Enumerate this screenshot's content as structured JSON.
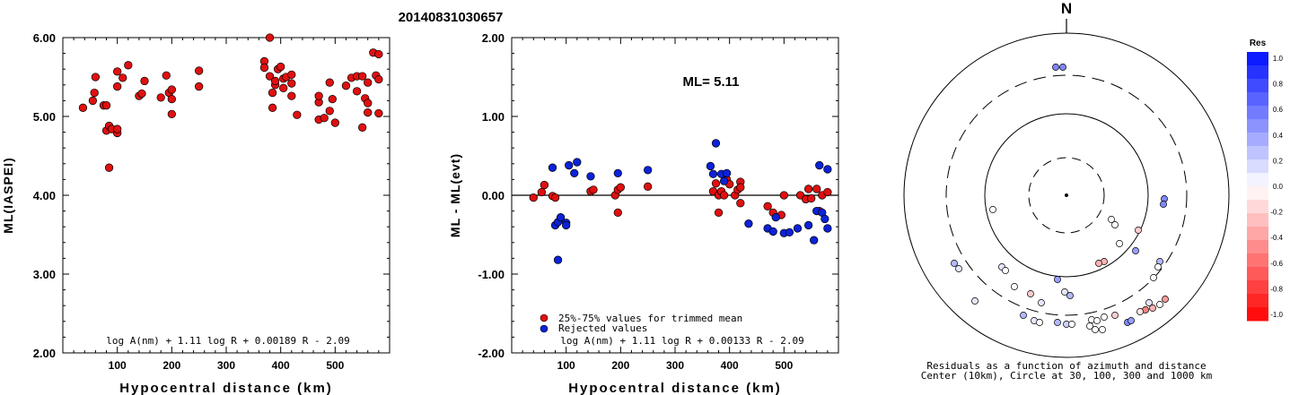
{
  "event_id": "20140831030657",
  "chart_data": [
    {
      "type": "scatter",
      "xlabel": "Hypocentral distance (km)",
      "ylabel": "ML(IASPEI)",
      "xlim": [
        0,
        600
      ],
      "ylim": [
        2.0,
        6.0
      ],
      "x_ticks": [
        "100",
        "200",
        "300",
        "400",
        "500"
      ],
      "y_ticks": [
        "2.00",
        "3.00",
        "4.00",
        "5.00",
        "6.00"
      ],
      "formula": "log A(nm) + 1.11 log R + 0.00189 R - 2.09",
      "point_color": "#e01010",
      "points": [
        [
          37,
          5.11
        ],
        [
          55,
          5.2
        ],
        [
          58,
          5.3
        ],
        [
          60,
          5.5
        ],
        [
          75,
          5.14
        ],
        [
          80,
          4.82
        ],
        [
          80,
          5.14
        ],
        [
          85,
          4.35
        ],
        [
          85,
          4.88
        ],
        [
          90,
          4.84
        ],
        [
          100,
          4.79
        ],
        [
          100,
          4.84
        ],
        [
          100,
          5.38
        ],
        [
          100,
          5.57
        ],
        [
          110,
          5.49
        ],
        [
          120,
          5.65
        ],
        [
          140,
          5.26
        ],
        [
          145,
          5.29
        ],
        [
          150,
          5.45
        ],
        [
          180,
          5.24
        ],
        [
          190,
          5.52
        ],
        [
          195,
          5.3
        ],
        [
          200,
          5.03
        ],
        [
          200,
          5.22
        ],
        [
          200,
          5.34
        ],
        [
          250,
          5.38
        ],
        [
          250,
          5.58
        ],
        [
          370,
          5.7
        ],
        [
          370,
          5.62
        ],
        [
          380,
          6.0
        ],
        [
          380,
          5.51
        ],
        [
          385,
          5.11
        ],
        [
          385,
          5.3
        ],
        [
          390,
          5.4
        ],
        [
          390,
          5.45
        ],
        [
          395,
          5.6
        ],
        [
          400,
          5.63
        ],
        [
          405,
          5.48
        ],
        [
          405,
          5.36
        ],
        [
          410,
          5.5
        ],
        [
          420,
          5.42
        ],
        [
          420,
          5.53
        ],
        [
          420,
          5.26
        ],
        [
          430,
          5.02
        ],
        [
          470,
          4.96
        ],
        [
          470,
          5.18
        ],
        [
          470,
          5.26
        ],
        [
          480,
          4.98
        ],
        [
          490,
          5.07
        ],
        [
          490,
          5.43
        ],
        [
          495,
          5.22
        ],
        [
          500,
          4.92
        ],
        [
          520,
          5.39
        ],
        [
          530,
          5.49
        ],
        [
          540,
          5.51
        ],
        [
          540,
          5.32
        ],
        [
          550,
          4.86
        ],
        [
          550,
          5.51
        ],
        [
          555,
          5.23
        ],
        [
          560,
          5.43
        ],
        [
          560,
          5.17
        ],
        [
          560,
          5.05
        ],
        [
          570,
          5.81
        ],
        [
          575,
          5.52
        ],
        [
          580,
          5.04
        ],
        [
          580,
          5.79
        ],
        [
          580,
          5.47
        ]
      ]
    },
    {
      "type": "scatter",
      "xlabel": "Hypocentral distance (km)",
      "ylabel": "ML - ML(evt)",
      "xlim": [
        0,
        600
      ],
      "ylim": [
        -2.0,
        2.0
      ],
      "x_ticks": [
        "100",
        "200",
        "300",
        "400",
        "500"
      ],
      "y_ticks": [
        "-2.00",
        "-1.00",
        "0.00",
        "1.00",
        "2.00"
      ],
      "annotation": "ML= 5.11",
      "formula": "log A(nm) + 1.11 log R + 0.00133 R - 2.09",
      "legend": [
        {
          "label": "25%-75% values for trimmed mean",
          "color": "#e01010"
        },
        {
          "label": "Rejected values",
          "color": "#0b22d8"
        }
      ],
      "series": [
        {
          "name": "25%-75% values for trimmed mean",
          "color": "#e01010",
          "points": [
            [
              40,
              -0.03
            ],
            [
              55,
              0.04
            ],
            [
              60,
              0.13
            ],
            [
              75,
              -0.01
            ],
            [
              80,
              -0.03
            ],
            [
              145,
              0.05
            ],
            [
              150,
              0.07
            ],
            [
              190,
              0.0
            ],
            [
              195,
              0.07
            ],
            [
              195,
              -0.22
            ],
            [
              200,
              0.1
            ],
            [
              250,
              0.11
            ],
            [
              370,
              0.05
            ],
            [
              375,
              0.15
            ],
            [
              380,
              0.0
            ],
            [
              380,
              -0.22
            ],
            [
              385,
              0.05
            ],
            [
              390,
              0.0
            ],
            [
              395,
              0.2
            ],
            [
              400,
              0.14
            ],
            [
              410,
              0.0
            ],
            [
              415,
              0.07
            ],
            [
              420,
              0.17
            ],
            [
              420,
              0.1
            ],
            [
              420,
              -0.1
            ],
            [
              470,
              -0.14
            ],
            [
              480,
              -0.22
            ],
            [
              495,
              -0.25
            ],
            [
              500,
              0.0
            ],
            [
              530,
              0.0
            ],
            [
              540,
              -0.05
            ],
            [
              545,
              0.08
            ],
            [
              550,
              -0.04
            ],
            [
              560,
              0.08
            ],
            [
              565,
              -0.2
            ],
            [
              570,
              0.0
            ],
            [
              580,
              0.04
            ]
          ]
        },
        {
          "name": "Rejected values",
          "color": "#0b22d8",
          "points": [
            [
              75,
              0.35
            ],
            [
              80,
              -0.38
            ],
            [
              85,
              -0.34
            ],
            [
              90,
              -0.28
            ],
            [
              85,
              -0.82
            ],
            [
              100,
              -0.35
            ],
            [
              100,
              -0.38
            ],
            [
              105,
              0.38
            ],
            [
              115,
              0.28
            ],
            [
              120,
              0.42
            ],
            [
              145,
              0.24
            ],
            [
              195,
              0.28
            ],
            [
              250,
              0.32
            ],
            [
              365,
              0.37
            ],
            [
              370,
              0.27
            ],
            [
              375,
              0.66
            ],
            [
              385,
              0.27
            ],
            [
              390,
              0.18
            ],
            [
              395,
              0.28
            ],
            [
              435,
              -0.36
            ],
            [
              470,
              -0.42
            ],
            [
              480,
              -0.46
            ],
            [
              485,
              -0.28
            ],
            [
              500,
              -0.48
            ],
            [
              510,
              -0.47
            ],
            [
              525,
              -0.42
            ],
            [
              545,
              -0.38
            ],
            [
              555,
              -0.57
            ],
            [
              560,
              -0.2
            ],
            [
              565,
              0.38
            ],
            [
              570,
              -0.22
            ],
            [
              575,
              -0.3
            ],
            [
              580,
              0.33
            ],
            [
              580,
              -0.42
            ]
          ]
        }
      ]
    },
    {
      "type": "polar-scatter",
      "north_label": "N",
      "caption_line1": "Residuals as a function of azimuth and distance",
      "caption_line2": "Center (10km), Circle at 30, 100, 300 and 1000 km",
      "colorbar": {
        "title": "Res",
        "ticks": [
          "1.0",
          "0.8",
          "0.6",
          "0.4",
          "0.2",
          "0.0",
          "-0.2",
          "-0.4",
          "-0.6",
          "-0.8",
          "-1.0"
        ]
      },
      "stations_residuals": [
        [
          176,
          0,
          1.0,
          1
        ],
        [
          176,
          0,
          1.0,
          1
        ],
        [
          1304,
          0,
          0.0,
          1
        ],
        [
          1304,
          0,
          0.0,
          1
        ],
        [
          1304,
          0,
          0.0,
          1
        ]
      ],
      "stations": [
        [
          1176,
          75,
          0.5
        ],
        [
          1184,
          75,
          0.5
        ],
        [
          1297,
          222,
          0.5
        ],
        [
          1296,
          228,
          0.5
        ],
        [
          1106,
          234,
          0.0
        ],
        [
          1238,
          245,
          0.0
        ],
        [
          1242,
          251,
          0.0
        ],
        [
          1268,
          257,
          -0.2
        ],
        [
          1247,
          272,
          0.0
        ],
        [
          1265,
          280,
          0.4
        ],
        [
          1230,
          292,
          -0.3
        ],
        [
          1224,
          294,
          -0.3
        ],
        [
          1292,
          292,
          0.3
        ],
        [
          1290,
          298,
          0.0
        ],
        [
          1063,
          294,
          0.3
        ],
        [
          1068,
          300,
          0.1
        ],
        [
          1116,
          298,
          0.1
        ],
        [
          1120,
          302,
          0.0
        ],
        [
          1178,
          312,
          0.4
        ],
        [
          1285,
          310,
          0.0
        ],
        [
          1130,
          320,
          0.0
        ],
        [
          1148,
          328,
          -0.2
        ],
        [
          1186,
          326,
          0.1
        ],
        [
          1192,
          330,
          0.3
        ],
        [
          1086,
          336,
          0.1
        ],
        [
          1298,
          334,
          -0.4
        ],
        [
          1280,
          338,
          0.1
        ],
        [
          1292,
          340,
          0.0
        ],
        [
          1284,
          344,
          -0.3
        ],
        [
          1276,
          346,
          -0.5
        ],
        [
          1160,
          338,
          0.1
        ],
        [
          1270,
          348,
          -0.1
        ],
        [
          1230,
          354,
          0.0
        ],
        [
          1242,
          352,
          -0.2
        ],
        [
          1256,
          360,
          0.5
        ],
        [
          1260,
          358,
          0.4
        ],
        [
          1140,
          352,
          0.3
        ],
        [
          1152,
          358,
          0.1
        ],
        [
          1158,
          360,
          0.0
        ],
        [
          1178,
          360,
          0.3
        ],
        [
          1188,
          362,
          0.2
        ],
        [
          1194,
          362,
          0.0
        ],
        [
          1216,
          357,
          0.0
        ],
        [
          1222,
          358,
          0.0
        ],
        [
          1220,
          368,
          0.0
        ],
        [
          1228,
          368,
          0.0
        ],
        [
          1214,
          364,
          0.0
        ]
      ]
    }
  ]
}
